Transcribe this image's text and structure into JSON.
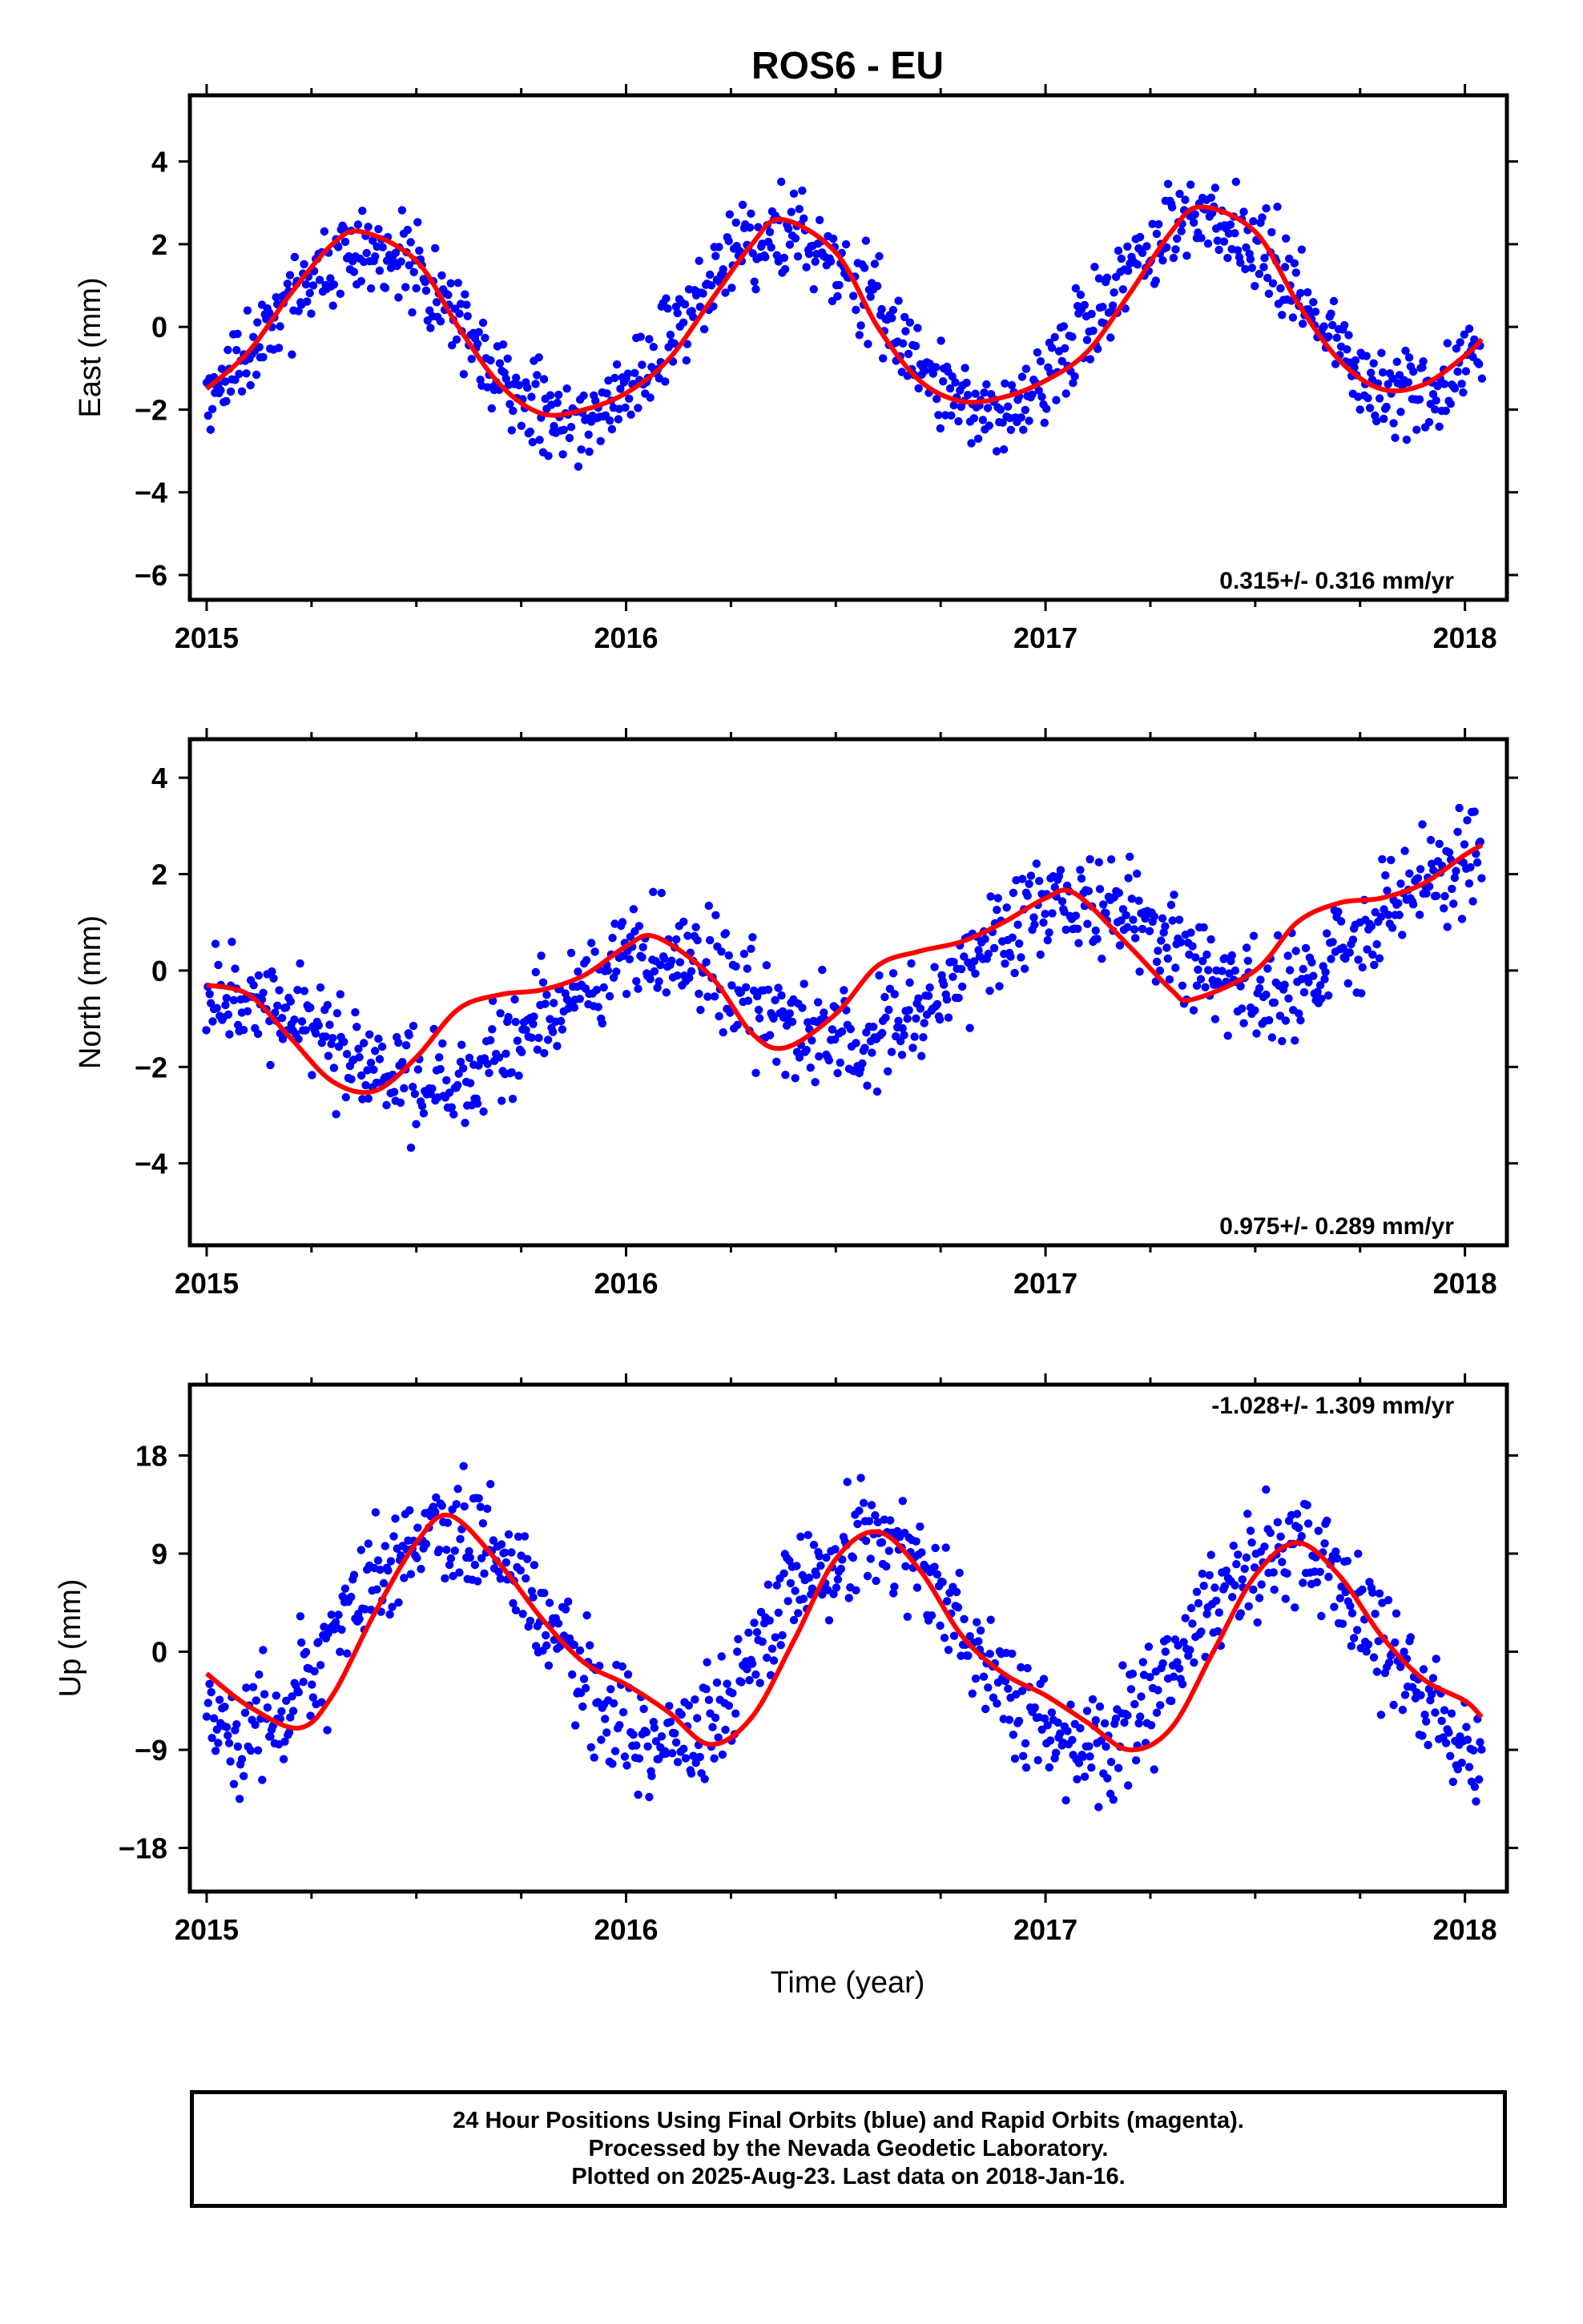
{
  "figure": {
    "title": "ROS6 - EU",
    "xlabel": "Time (year)",
    "footer_lines": [
      "24 Hour Positions Using Final Orbits (blue) and Rapid Orbits (magenta).",
      "Processed by the Nevada Geodetic Laboratory.",
      "Plotted on 2025-Aug-23. Last data on 2018-Jan-16."
    ]
  },
  "colors": {
    "points": "#0000ff",
    "model": "#ff0000",
    "frame": "#000000"
  },
  "chart_data": [
    {
      "type": "scatter",
      "ylabel": "East (mm)",
      "rate_text": "0.315+/- 0.316 mm/yr",
      "xlim": [
        2014.96,
        2018.1
      ],
      "ylim": [
        -6.6,
        5.6
      ],
      "xticks": [
        2015,
        2016,
        2017,
        2018
      ],
      "yticks": [
        -6,
        -4,
        -2,
        0,
        2,
        4
      ],
      "series": [
        {
          "kind": "points",
          "seed": 11,
          "x_start": 2015.0,
          "x_end": 2018.04,
          "n": 900,
          "model": {
            "mean": 0.1,
            "trend": 0.315,
            "annual_amp": 2.2,
            "annual_phase": 2015.37,
            "noise": 0.75
          }
        },
        {
          "kind": "model_curve",
          "x": [
            2015.0,
            2015.1,
            2015.2,
            2015.3,
            2015.37,
            2015.5,
            2015.6,
            2015.7,
            2015.8,
            2015.9,
            2016.0,
            2016.1,
            2016.2,
            2016.3,
            2016.37,
            2016.5,
            2016.6,
            2016.7,
            2016.8,
            2016.9,
            2017.0,
            2017.1,
            2017.2,
            2017.3,
            2017.37,
            2017.5,
            2017.6,
            2017.7,
            2017.8,
            2017.9,
            2018.0,
            2018.04
          ],
          "y": [
            -1.5,
            -0.6,
            0.8,
            2.0,
            2.3,
            1.6,
            0.0,
            -1.4,
            -2.1,
            -2.0,
            -1.6,
            -0.8,
            0.6,
            2.0,
            2.6,
            1.8,
            0.0,
            -1.3,
            -1.8,
            -1.7,
            -1.3,
            -0.6,
            0.8,
            2.3,
            2.9,
            2.3,
            0.6,
            -0.8,
            -1.5,
            -1.4,
            -0.7,
            -0.3
          ]
        }
      ]
    },
    {
      "type": "scatter",
      "ylabel": "North (mm)",
      "rate_text": "0.975+/- 0.289 mm/yr",
      "xlim": [
        2014.96,
        2018.1
      ],
      "ylim": [
        -5.7,
        4.8
      ],
      "xticks": [
        2015,
        2016,
        2017,
        2018
      ],
      "yticks": [
        -4,
        -2,
        0,
        2,
        4
      ],
      "series": [
        {
          "kind": "points",
          "seed": 23,
          "x_start": 2015.0,
          "x_end": 2018.04,
          "n": 900,
          "model": {
            "mean": -0.3,
            "trend": 0.975,
            "annual_amp": 1.2,
            "annual_phase": 2015.05,
            "noise": 0.75
          }
        },
        {
          "kind": "model_curve",
          "x": [
            2015.0,
            2015.1,
            2015.2,
            2015.3,
            2015.4,
            2015.5,
            2015.6,
            2015.7,
            2015.8,
            2015.9,
            2016.0,
            2016.07,
            2016.2,
            2016.3,
            2016.38,
            2016.5,
            2016.6,
            2016.7,
            2016.8,
            2016.9,
            2017.0,
            2017.07,
            2017.2,
            2017.3,
            2017.35,
            2017.5,
            2017.6,
            2017.7,
            2017.8,
            2017.9,
            2018.0,
            2018.04
          ],
          "y": [
            -0.3,
            -0.5,
            -1.4,
            -2.3,
            -2.5,
            -1.8,
            -0.8,
            -0.5,
            -0.4,
            -0.1,
            0.5,
            0.7,
            -0.1,
            -1.3,
            -1.6,
            -0.9,
            0.1,
            0.4,
            0.6,
            1.0,
            1.5,
            1.6,
            0.5,
            -0.4,
            -0.6,
            0.0,
            1.0,
            1.4,
            1.5,
            1.8,
            2.4,
            2.6
          ]
        }
      ]
    },
    {
      "type": "scatter",
      "ylabel": "Up (mm)",
      "rate_text": "-1.028+/- 1.309 mm/yr",
      "xlim": [
        2014.96,
        2018.1
      ],
      "ylim": [
        -22.0,
        24.5
      ],
      "xticks": [
        2015,
        2016,
        2017,
        2018
      ],
      "yticks": [
        -18,
        -9,
        0,
        9,
        18
      ],
      "series": [
        {
          "kind": "points",
          "seed": 37,
          "x_start": 2015.0,
          "x_end": 2018.04,
          "n": 900,
          "model": {
            "mean": 1.0,
            "trend": -1.028,
            "annual_amp": 9.5,
            "annual_phase": 2015.58,
            "noise": 3.6
          }
        },
        {
          "kind": "model_curve",
          "x": [
            2015.0,
            2015.1,
            2015.22,
            2015.3,
            2015.4,
            2015.5,
            2015.58,
            2015.7,
            2015.8,
            2015.9,
            2016.0,
            2016.1,
            2016.2,
            2016.3,
            2016.4,
            2016.5,
            2016.6,
            2016.7,
            2016.8,
            2016.9,
            2017.0,
            2017.1,
            2017.2,
            2017.3,
            2017.4,
            2017.5,
            2017.6,
            2017.7,
            2017.8,
            2017.9,
            2018.0,
            2018.04
          ],
          "y": [
            -2.0,
            -5.0,
            -7.0,
            -4.0,
            3.5,
            10.0,
            12.5,
            8.0,
            3.0,
            -1.0,
            -3.0,
            -5.5,
            -8.5,
            -6.0,
            1.0,
            8.5,
            11.0,
            7.5,
            1.5,
            -2.0,
            -4.0,
            -6.5,
            -9.0,
            -7.0,
            0.0,
            7.0,
            10.0,
            7.0,
            1.5,
            -2.5,
            -4.5,
            -6.0
          ]
        }
      ]
    }
  ]
}
